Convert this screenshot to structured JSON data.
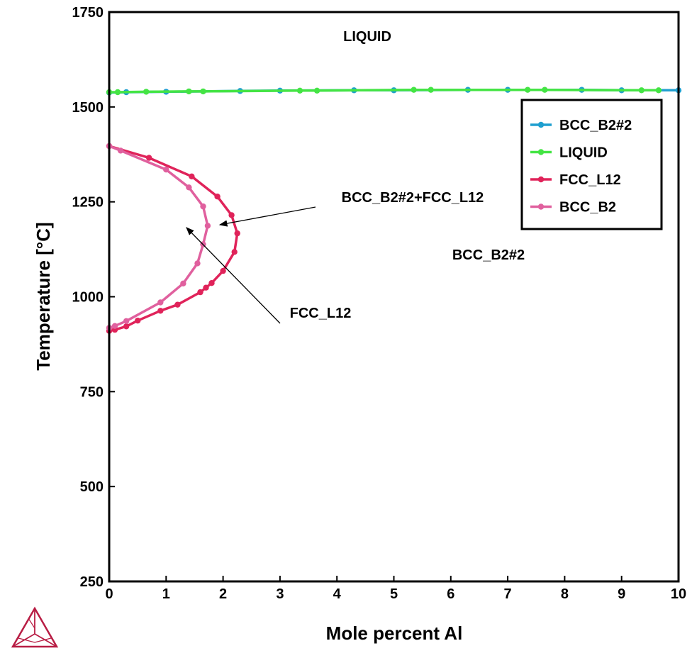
{
  "chart_data": {
    "type": "line",
    "xlabel": "Mole percent Al",
    "ylabel": "Temperature [°C]",
    "xlim": [
      0,
      10
    ],
    "ylim": [
      250,
      1750
    ],
    "xticks": [
      0,
      1,
      2,
      3,
      4,
      5,
      6,
      7,
      8,
      9,
      10
    ],
    "yticks": [
      250,
      500,
      750,
      1000,
      1250,
      1500,
      1750
    ],
    "grid": false,
    "legend_position": "top-right",
    "legend": [
      "BCC_B2#2",
      "LIQUID",
      "FCC_L12",
      "BCC_B2"
    ],
    "series": [
      {
        "name": "BCC_B2#2",
        "color": "#1f9fcf",
        "points": [
          [
            0.0,
            1538
          ],
          [
            0.3,
            1539
          ],
          [
            1.0,
            1540
          ],
          [
            2.3,
            1542
          ],
          [
            3.0,
            1543
          ],
          [
            4.3,
            1544
          ],
          [
            5.0,
            1544
          ],
          [
            6.3,
            1545
          ],
          [
            7.0,
            1545
          ],
          [
            8.3,
            1545
          ],
          [
            9.0,
            1544
          ],
          [
            10.0,
            1544
          ]
        ]
      },
      {
        "name": "LIQUID",
        "color": "#44e444",
        "points": [
          [
            0.0,
            1539
          ],
          [
            0.15,
            1539
          ],
          [
            0.65,
            1540
          ],
          [
            1.4,
            1541
          ],
          [
            1.65,
            1541
          ],
          [
            3.35,
            1543
          ],
          [
            3.65,
            1543
          ],
          [
            5.35,
            1545
          ],
          [
            5.65,
            1545
          ],
          [
            7.35,
            1545
          ],
          [
            7.65,
            1545
          ],
          [
            9.35,
            1544
          ],
          [
            9.65,
            1544
          ]
        ]
      },
      {
        "name": "FCC_L12",
        "color": "#e0235a",
        "points": [
          [
            0.0,
            1397
          ],
          [
            0.7,
            1366
          ],
          [
            1.45,
            1317
          ],
          [
            1.9,
            1264
          ],
          [
            2.15,
            1215
          ],
          [
            2.25,
            1167
          ],
          [
            2.2,
            1118
          ],
          [
            2.0,
            1068
          ],
          [
            1.8,
            1036
          ],
          [
            1.7,
            1024
          ],
          [
            1.6,
            1012
          ],
          [
            1.2,
            979
          ],
          [
            0.9,
            963
          ],
          [
            0.5,
            937
          ],
          [
            0.3,
            922
          ],
          [
            0.1,
            913
          ],
          [
            0.0,
            910
          ]
        ]
      },
      {
        "name": "BCC_B2",
        "color": "#e0609e",
        "points": [
          [
            0.0,
            1397
          ],
          [
            0.2,
            1385
          ],
          [
            1.0,
            1335
          ],
          [
            1.4,
            1288
          ],
          [
            1.65,
            1238
          ],
          [
            1.73,
            1187
          ],
          [
            1.65,
            1138
          ],
          [
            1.55,
            1088
          ],
          [
            1.3,
            1035
          ],
          [
            0.9,
            985
          ],
          [
            0.3,
            936
          ],
          [
            0.1,
            923
          ],
          [
            0.0,
            918
          ]
        ]
      }
    ],
    "annotations": [
      {
        "text": "LIQUID"
      },
      {
        "text": "BCC_B2#2+FCC_L12"
      },
      {
        "text": "BCC_B2#2"
      },
      {
        "text": "FCC_L12"
      }
    ]
  }
}
